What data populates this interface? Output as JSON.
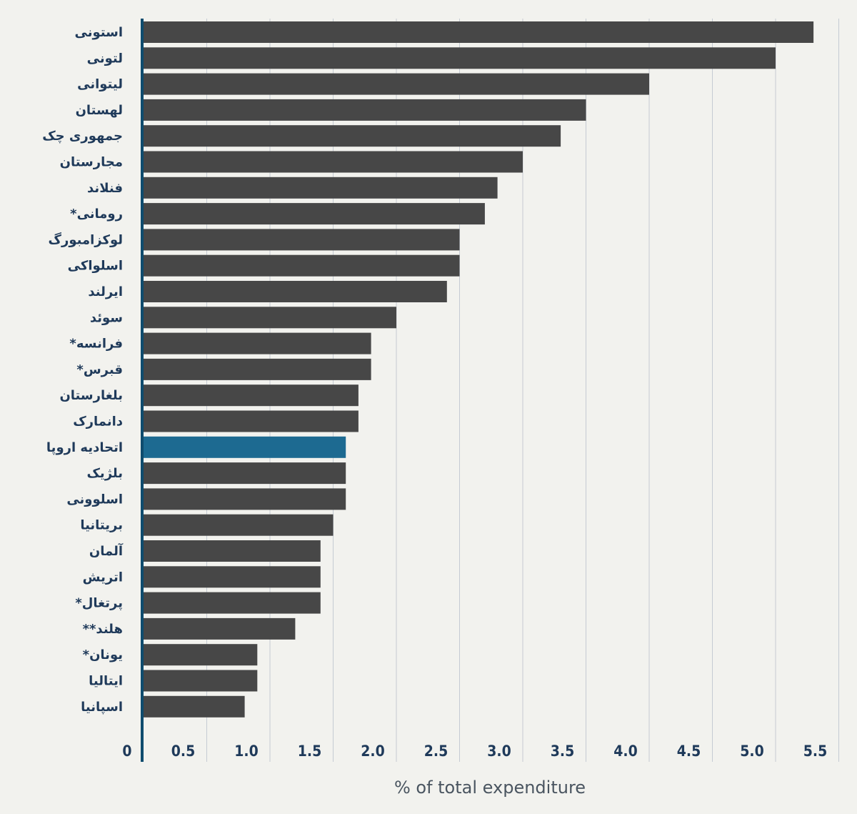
{
  "chart_data": {
    "type": "bar",
    "orientation": "horizontal",
    "xlabel": "% of total expenditure",
    "xlim": [
      0,
      5.5
    ],
    "xticks": [
      "0",
      "0.5",
      "1.0",
      "1.5",
      "2.0",
      "2.5",
      "3.0",
      "3.5",
      "4.0",
      "4.5",
      "5.0",
      "5.5"
    ],
    "grid": true,
    "categories": [
      "استونی",
      "لتونی",
      "لیتوانی",
      "لهستان",
      "جمهوری چک",
      "مجارستان",
      "فنلاند",
      "*رومانی",
      "لوکزامبورگ",
      "اسلواکی",
      "ایرلند",
      "سوئد",
      "*فرانسه",
      "*قبرس",
      "بلغارستان",
      "دانمارک",
      "اتحادیه اروپا",
      "بلژیک",
      "اسلوونی",
      "بریتانیا",
      "آلمان",
      "اتریش",
      "*پرتغال",
      "**هلند",
      "*یونان",
      "ایتالیا",
      "اسپانیا"
    ],
    "values": [
      5.3,
      5.0,
      4.0,
      3.5,
      3.3,
      3.0,
      2.8,
      2.7,
      2.5,
      2.5,
      2.4,
      2.0,
      1.8,
      1.8,
      1.7,
      1.7,
      1.6,
      1.6,
      1.6,
      1.5,
      1.4,
      1.4,
      1.4,
      1.2,
      0.9,
      0.9,
      0.8
    ],
    "highlight_category": "اتحادیه اروپا",
    "colors": {
      "bar": "#474747",
      "highlight": "#1d6a91",
      "axis": "#0f4c6e",
      "grid": "#c5cbd3",
      "background": "#f2f2ee",
      "tick_text": "#1f3a5a",
      "title_text": "#4a5560"
    }
  }
}
